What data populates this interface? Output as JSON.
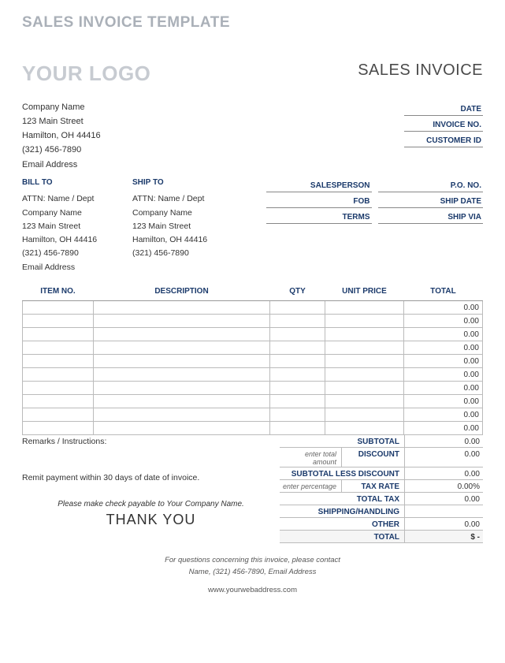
{
  "template_title": "SALES INVOICE TEMPLATE",
  "logo_placeholder": "YOUR LOGO",
  "invoice_title": "SALES INVOICE",
  "company": {
    "name": "Company Name",
    "street": "123 Main Street",
    "city_line": "Hamilton, OH  44416",
    "phone": "(321) 456-7890",
    "email": "Email Address"
  },
  "meta": {
    "date": "DATE",
    "invoice_no": "INVOICE NO.",
    "customer_id": "CUSTOMER ID",
    "salesperson": "SALESPERSON",
    "po_no": "P.O. NO.",
    "fob": "FOB",
    "ship_date": "SHIP DATE",
    "terms": "TERMS",
    "ship_via": "SHIP VIA"
  },
  "bill_to": {
    "label": "BILL TO",
    "attn": "ATTN: Name / Dept",
    "company": "Company Name",
    "street": "123 Main Street",
    "city_line": "Hamilton, OH  44416",
    "phone": "(321) 456-7890",
    "email": "Email Address"
  },
  "ship_to": {
    "label": "SHIP TO",
    "attn": "ATTN: Name / Dept",
    "company": "Company Name",
    "street": "123 Main Street",
    "city_line": "Hamilton, OH  44416",
    "phone": "(321) 456-7890"
  },
  "items_table": {
    "headers": {
      "item_no": "ITEM NO.",
      "description": "DESCRIPTION",
      "qty": "QTY",
      "unit_price": "UNIT PRICE",
      "total": "TOTAL"
    },
    "rows": [
      {
        "total": "0.00"
      },
      {
        "total": "0.00"
      },
      {
        "total": "0.00"
      },
      {
        "total": "0.00"
      },
      {
        "total": "0.00"
      },
      {
        "total": "0.00"
      },
      {
        "total": "0.00"
      },
      {
        "total": "0.00"
      },
      {
        "total": "0.00"
      },
      {
        "total": "0.00"
      }
    ]
  },
  "remarks_label": "Remarks / Instructions:",
  "remit_text": "Remit payment within 30 days of date of invoice.",
  "payable_text": "Please make check payable to Your Company Name.",
  "thank_you": "THANK YOU",
  "summary": {
    "subtotal": {
      "label": "SUBTOTAL",
      "value": "0.00"
    },
    "discount": {
      "hint": "enter total amount",
      "label": "DISCOUNT",
      "value": "0.00"
    },
    "subtotal_less": {
      "label": "SUBTOTAL LESS DISCOUNT",
      "value": "0.00"
    },
    "tax_rate": {
      "hint": "enter percentage",
      "label": "TAX RATE",
      "value": "0.00%"
    },
    "total_tax": {
      "label": "TOTAL TAX",
      "value": "0.00"
    },
    "shipping": {
      "label": "SHIPPING/HANDLING",
      "value": ""
    },
    "other": {
      "label": "OTHER",
      "value": "0.00"
    },
    "total": {
      "label": "TOTAL",
      "value": "$            -"
    }
  },
  "footer": {
    "line1": "For questions concerning this invoice, please contact",
    "line2": "Name, (321) 456-7890, Email Address",
    "web": "www.yourwebaddress.com"
  },
  "colors": {
    "accent": "#1b3a6b",
    "muted": "#aab0b8",
    "logo_muted": "#c7cbd1",
    "border": "#bbbbbb",
    "background": "#ffffff"
  }
}
